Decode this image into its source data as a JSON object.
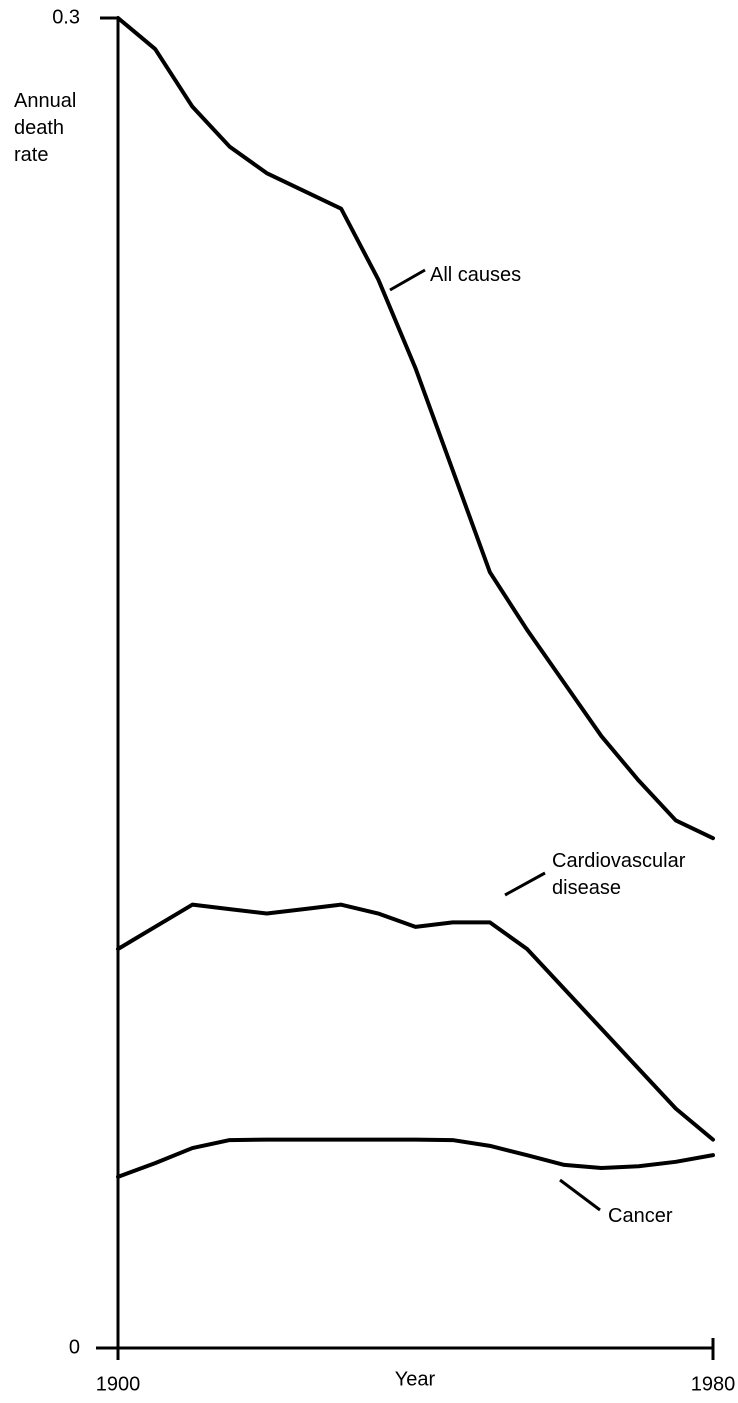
{
  "chart_data": {
    "type": "line",
    "y_label": "Annual death rate",
    "x_label": "Year",
    "x": [
      1900,
      1905,
      1910,
      1915,
      1920,
      1925,
      1930,
      1935,
      1940,
      1945,
      1950,
      1955,
      1960,
      1965,
      1970,
      1975,
      1980
    ],
    "series": [
      {
        "name": "All causes",
        "color": "#000000",
        "values": [
          0.3,
          0.293,
          0.28,
          0.271,
          0.265,
          0.261,
          0.257,
          0.241,
          0.221,
          0.198,
          0.175,
          0.162,
          0.15,
          0.138,
          0.128,
          0.119,
          0.115
        ]
      },
      {
        "name": "Cardiovascular disease",
        "color": "#000000",
        "values": [
          0.09,
          0.095,
          0.1,
          0.099,
          0.098,
          0.099,
          0.1,
          0.098,
          0.095,
          0.096,
          0.096,
          0.09,
          0.081,
          0.072,
          0.063,
          0.054,
          0.047
        ]
      },
      {
        "name": "Cancer",
        "color": "#000000",
        "values": [
          0.0386,
          0.0417,
          0.0451,
          0.0469,
          0.047,
          0.047,
          0.047,
          0.047,
          0.047,
          0.0469,
          0.0456,
          0.0435,
          0.0413,
          0.0406,
          0.041,
          0.042,
          0.0435
        ]
      }
    ],
    "xlim": [
      1900,
      1980
    ],
    "xticks": [
      1900,
      1980
    ],
    "ylim": [
      0,
      0.3
    ],
    "yticks": [
      0,
      0.3
    ]
  }
}
